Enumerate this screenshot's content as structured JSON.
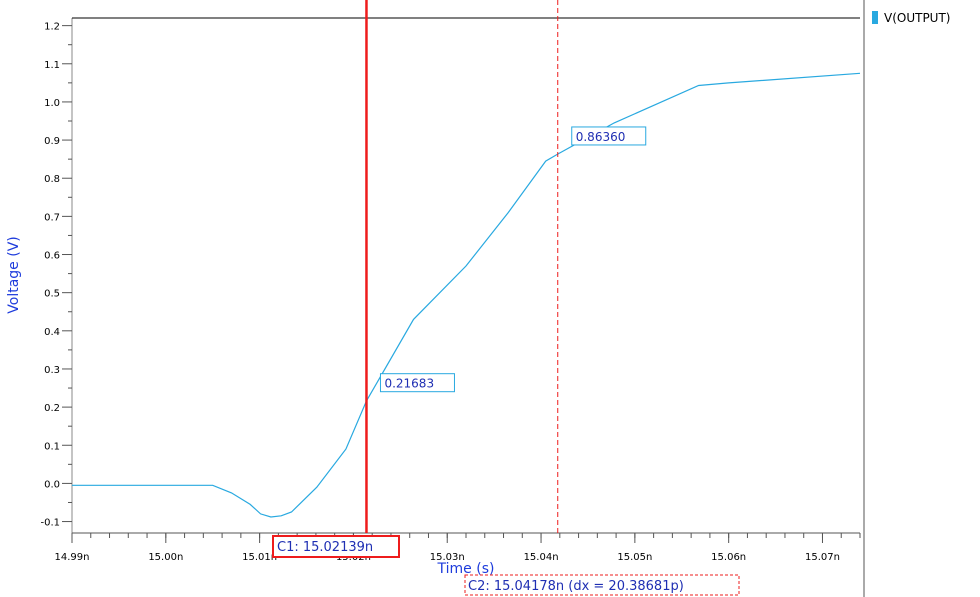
{
  "chart_data": {
    "type": "line",
    "title": "",
    "xlabel": "Time (s)",
    "ylabel": "Voltage (V)",
    "xlim": [
      14.99,
      15.074
    ],
    "ylim": [
      -0.13,
      1.22
    ],
    "x_unit": "n",
    "x_ticks": [
      "14.99n",
      "15.00n",
      "15.01n",
      "15.02n",
      "15.03n",
      "15.04n",
      "15.05n",
      "15.06n",
      "15.07n"
    ],
    "x_tick_values": [
      14.99,
      15.0,
      15.01,
      15.02,
      15.03,
      15.04,
      15.05,
      15.06,
      15.07
    ],
    "y_ticks": [
      "-0.1",
      "0.0",
      "0.1",
      "0.2",
      "0.3",
      "0.4",
      "0.5",
      "0.6",
      "0.7",
      "0.8",
      "0.9",
      "1.0",
      "1.1",
      "1.2"
    ],
    "y_tick_values": [
      -0.1,
      0.0,
      0.1,
      0.2,
      0.3,
      0.4,
      0.5,
      0.6,
      0.7,
      0.8,
      0.9,
      1.0,
      1.1,
      1.2
    ],
    "grid": false,
    "legend_position": "top-right",
    "series": [
      {
        "name": "V(OUTPUT)",
        "color": "#29a9e0",
        "x": [
          14.99,
          15.0,
          15.005,
          15.007,
          15.009,
          15.0101,
          15.0112,
          15.0123,
          15.0134,
          15.0161,
          15.0192,
          15.0214,
          15.0264,
          15.032,
          15.0365,
          15.0405,
          15.0418,
          15.0478,
          15.0568,
          15.06,
          15.074
        ],
        "values": [
          -0.005,
          -0.005,
          -0.005,
          -0.025,
          -0.055,
          -0.08,
          -0.088,
          -0.085,
          -0.075,
          -0.01,
          0.09,
          0.21683,
          0.43,
          0.57,
          0.71,
          0.845,
          0.8636,
          0.945,
          1.043,
          1.05,
          1.075
        ]
      }
    ],
    "reference_line": {
      "y": 1.22,
      "color": "#000000"
    },
    "data_labels": [
      {
        "text": "0.21683",
        "x": 15.02139,
        "y": 0.21683
      },
      {
        "text": "0.86360",
        "x": 15.04178,
        "y": 0.8636
      }
    ],
    "cursors": [
      {
        "id": "C1",
        "label": "C1: 15.02139n",
        "x": 15.02139,
        "style": "solid",
        "color": "#ee1c1c"
      },
      {
        "id": "C2",
        "label": "C2: 15.04178n (dx = 20.38681p)",
        "x": 15.04178,
        "style": "dashed",
        "color": "#ee1c1c"
      }
    ],
    "label_color": "#1e3cdc",
    "axis_color": "#555555"
  }
}
